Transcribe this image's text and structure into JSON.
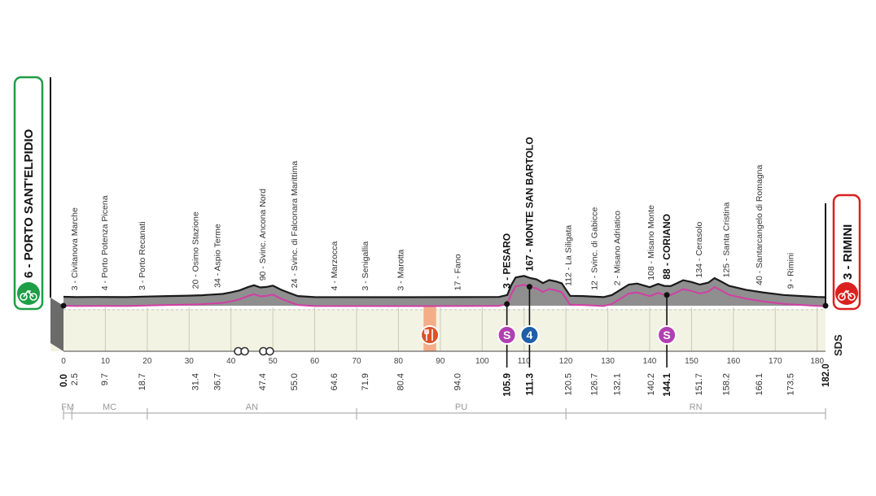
{
  "chart_data": {
    "type": "area",
    "start": {
      "label": "6 - PORTO SANT'ELPIDIO",
      "km": "0.0"
    },
    "finish": {
      "label": "3 - RIMINI",
      "km": "182.0"
    },
    "x_axis_ticks": [
      0,
      10,
      20,
      30,
      40,
      50,
      60,
      70,
      80,
      90,
      100,
      110,
      120,
      130,
      140,
      150,
      160,
      170,
      180
    ],
    "xlim": [
      0,
      182
    ],
    "waypoints": [
      {
        "label": "3 - Civitanova Marche",
        "km": "2.5",
        "bold": false
      },
      {
        "label": "4 - Porto Potenza Picena",
        "km": "9.7",
        "bold": false
      },
      {
        "label": "3 - Porto Recanati",
        "km": "18.7",
        "bold": false
      },
      {
        "label": "20 - Osimo Stazione",
        "km": "31.4",
        "bold": false
      },
      {
        "label": "34 - Aspio Terme",
        "km": "36.7",
        "bold": false
      },
      {
        "label": "90 - Svinc. Ancona Nord",
        "km": "47.4",
        "bold": false
      },
      {
        "label": "24 - Svinc. di Falconara Marittima",
        "km": "55.0",
        "bold": false
      },
      {
        "label": "4 - Marzocca",
        "km": "64.6",
        "bold": false
      },
      {
        "label": "3 - Senigallia",
        "km": "71.9",
        "bold": false
      },
      {
        "label": "3 - Marotta",
        "km": "80.4",
        "bold": false
      },
      {
        "label": "17 - Fano",
        "km": "94.0",
        "bold": false
      },
      {
        "label": "3 - PESARO",
        "km": "105.9",
        "bold": true
      },
      {
        "label": "167 - MONTE SAN BARTOLO",
        "km": "111.3",
        "bold": true
      },
      {
        "label": "112 - La Siligata",
        "km": "120.5",
        "bold": false
      },
      {
        "label": "12 - Svinc. di Gabicce",
        "km": "126.7",
        "bold": false
      },
      {
        "label": "2 - Misano Adriatico",
        "km": "132.1",
        "bold": false
      },
      {
        "label": "108 - Misano Monte",
        "km": "140.2",
        "bold": false
      },
      {
        "label": "88 - CORIANO",
        "km": "144.1",
        "bold": true
      },
      {
        "label": "134 - Cerasolo",
        "km": "151.7",
        "bold": false
      },
      {
        "label": "125 - Santa Cristina",
        "km": "158.2",
        "bold": false
      },
      {
        "label": "40 - Santarcangelo di Romagna",
        "km": "166.1",
        "bold": false
      },
      {
        "label": "9 - Rimini",
        "km": "173.5",
        "bold": false
      }
    ],
    "elevation_profile_m": {
      "km": [
        0,
        3,
        8,
        15,
        20,
        25,
        30,
        33,
        38,
        40,
        42,
        44,
        45.5,
        47,
        48.5,
        50,
        52,
        54,
        56,
        60,
        80,
        95,
        104,
        106,
        107,
        108,
        110,
        111.5,
        113,
        114.5,
        116,
        117.5,
        119,
        121,
        124,
        129,
        131,
        133,
        135,
        137,
        140,
        142,
        143.5,
        145,
        146.5,
        148,
        150,
        152,
        154,
        155.5,
        157,
        159,
        163,
        167,
        172,
        178,
        180,
        182
      ],
      "m": [
        6,
        4,
        5,
        4,
        8,
        12,
        15,
        18,
        28,
        40,
        55,
        80,
        95,
        78,
        82,
        92,
        60,
        35,
        12,
        4,
        3,
        4,
        5,
        20,
        100,
        155,
        167,
        150,
        140,
        112,
        135,
        125,
        110,
        14,
        12,
        4,
        20,
        60,
        100,
        108,
        80,
        105,
        90,
        88,
        110,
        134,
        120,
        100,
        115,
        150,
        125,
        90,
        60,
        40,
        20,
        9,
        5,
        3
      ]
    },
    "region_strip": [
      {
        "label": "FM",
        "km_start": 0,
        "km_end": 2
      },
      {
        "label": "MC",
        "km_start": 2,
        "km_end": 20
      },
      {
        "label": "AN",
        "km_start": 20,
        "km_end": 70
      },
      {
        "label": "PU",
        "km_start": 70,
        "km_end": 120
      },
      {
        "label": "RN",
        "km_start": 120,
        "km_end": 182
      }
    ],
    "markers": [
      {
        "kind": "sprint",
        "glyph": "S",
        "km": 105.9
      },
      {
        "kind": "climb-cat-4",
        "glyph": "4",
        "km": 111.3
      },
      {
        "kind": "sprint",
        "glyph": "S",
        "km": 144.1
      }
    ],
    "feed_zone_km": [
      86,
      89
    ],
    "tunnels_km": [
      42.5,
      48.5
    ],
    "brand": "SDS",
    "colors": {
      "profile_fill": "#8f8f8f",
      "profile_edge": "#1a1a1a",
      "route_line": "#d33ea5",
      "base_fill": "#f2f3e3",
      "start_badge": "#1e9e45",
      "finish_badge": "#d9211f",
      "sprint": "#b23fb2",
      "climb": "#1f5faa",
      "feed_zone": "#f3a67d"
    }
  }
}
